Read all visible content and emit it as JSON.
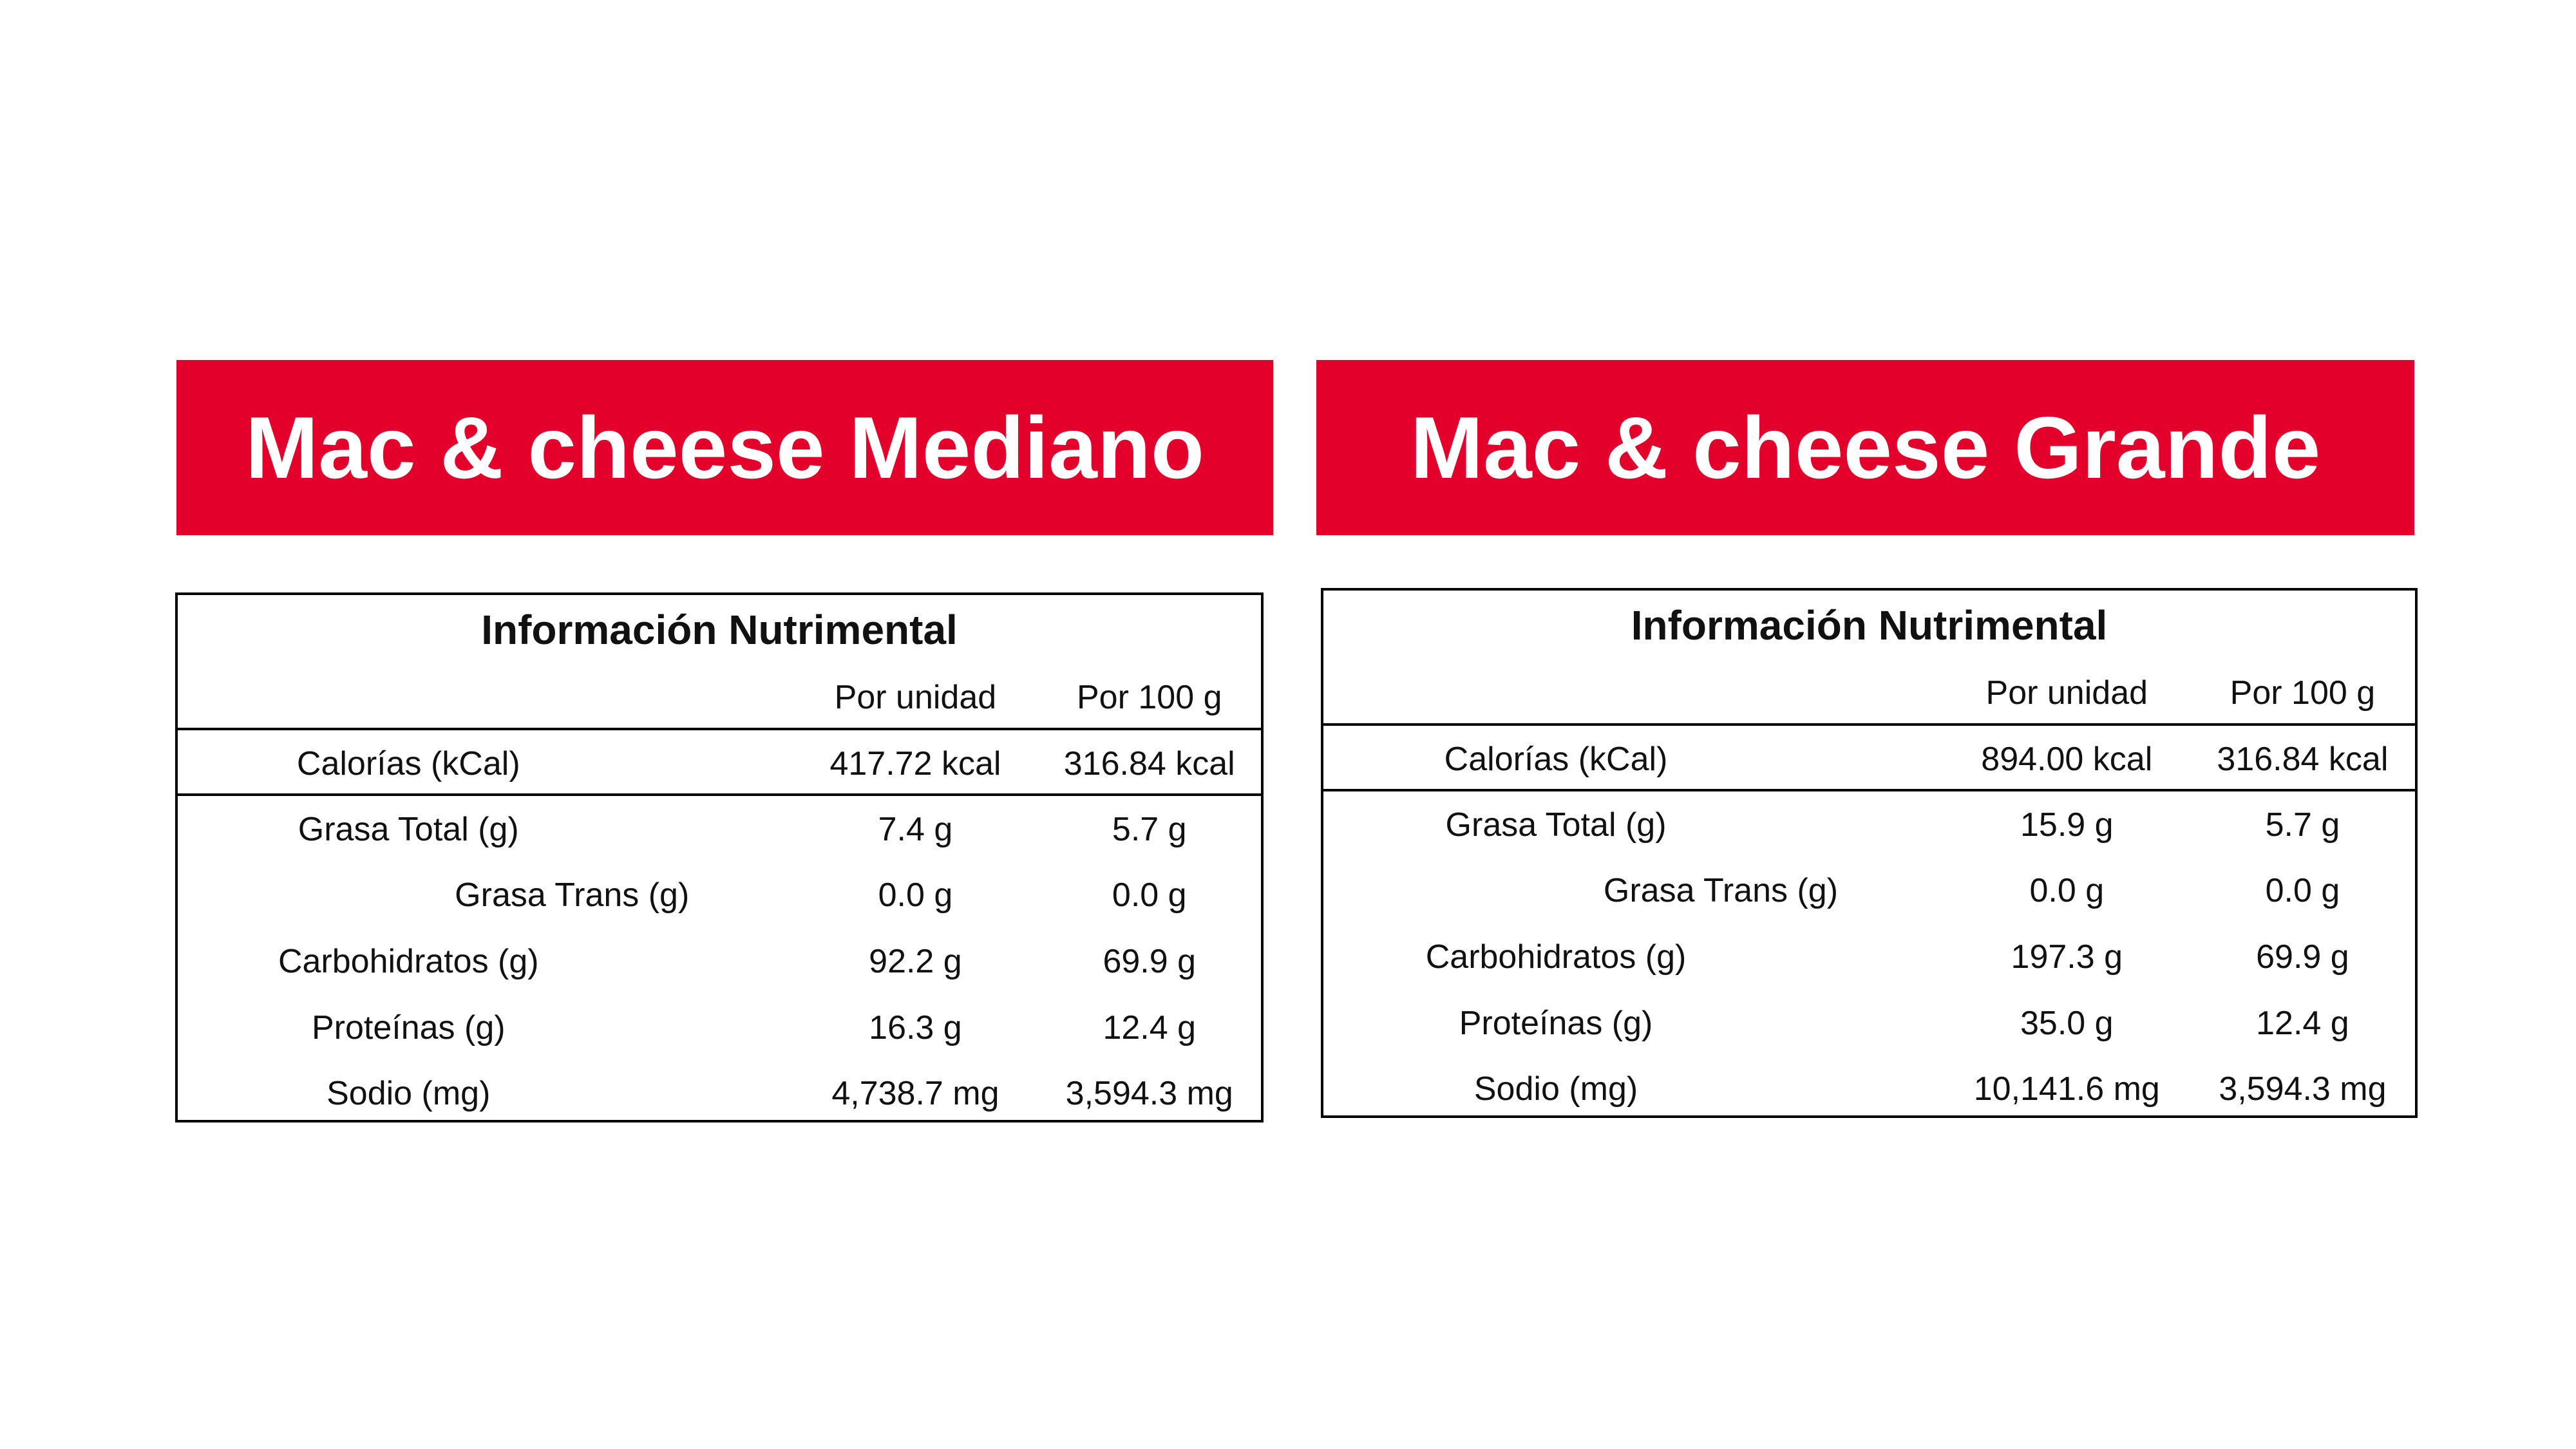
{
  "panels": [
    {
      "title": "Mac & cheese Mediano",
      "table": {
        "heading": "Información Nutrimental",
        "columns": [
          "Por unidad",
          "Por 100 g"
        ],
        "rows": [
          [
            "Calorías (kCal)",
            "417.72 kcal",
            "316.84 kcal"
          ],
          [
            "Grasa Total (g)",
            "7.4 g",
            "5.7 g"
          ],
          [
            "Grasa Trans (g)",
            "0.0 g",
            "0.0 g"
          ],
          [
            "Carbohidratos (g)",
            "92.2 g",
            "69.9 g"
          ],
          [
            "Proteínas (g)",
            "16.3 g",
            "12.4 g"
          ],
          [
            "Sodio (mg)",
            "4,738.7 mg",
            "3,594.3 mg"
          ]
        ]
      }
    },
    {
      "title": "Mac & cheese Grande",
      "table": {
        "heading": "Información Nutrimental",
        "columns": [
          "Por unidad",
          "Por 100 g"
        ],
        "rows": [
          [
            "Calorías (kCal)",
            "894.00 kcal",
            "316.84 kcal"
          ],
          [
            "Grasa Total (g)",
            "15.9 g",
            "5.7 g"
          ],
          [
            "Grasa Trans (g)",
            "0.0 g",
            "0.0 g"
          ],
          [
            "Carbohidratos (g)",
            "197.3 g",
            "69.9 g"
          ],
          [
            "Proteínas (g)",
            "35.0 g",
            "12.4 g"
          ],
          [
            "Sodio (mg)",
            "10,141.6 mg",
            "3,594.3 mg"
          ]
        ]
      }
    }
  ]
}
